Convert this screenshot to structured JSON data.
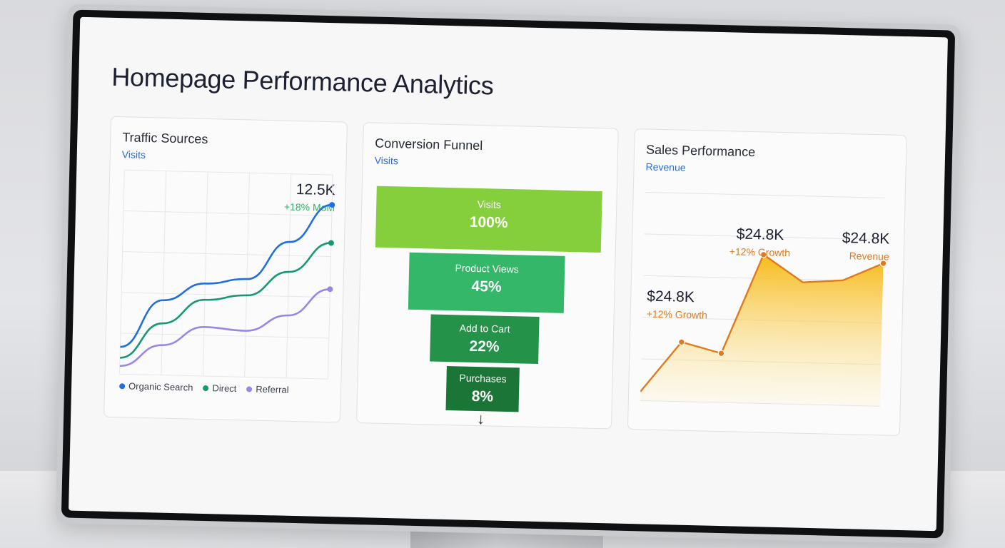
{
  "page_title": "Homepage Performance Analytics",
  "colors": {
    "organic": "#1f6fe0",
    "direct": "#159873",
    "referral": "#9b86e6",
    "funnel": [
      "#86cf3c",
      "#35b76a",
      "#25924a",
      "#1b7536"
    ],
    "sales": "#f2b81c",
    "accent": "#e07a1e"
  },
  "traffic": {
    "title": "Traffic Sources",
    "subtitle": "Visits",
    "value": "12.5K",
    "change": "+18% MoM",
    "legend": [
      "Organic Search",
      "Direct",
      "Referral"
    ]
  },
  "funnel": {
    "title": "Conversion Funnel",
    "subtitle": "Visits",
    "steps": [
      {
        "label": "Visits",
        "value": "100%"
      },
      {
        "label": "Product Views",
        "value": "45%"
      },
      {
        "label": "Add to Cart",
        "value": "22%"
      },
      {
        "label": "Purchases",
        "value": "8%"
      }
    ],
    "arrow": "↓"
  },
  "sales": {
    "title": "Sales Performance",
    "subtitle": "Revenue",
    "callout_left": {
      "value": "$24.8K",
      "change": "+12% Growth"
    },
    "callout_mid": {
      "value": "$24.8K",
      "change": "+12% Growth"
    },
    "callout_right": {
      "value": "$24.8K",
      "label": "Revenue"
    }
  },
  "chart_data": [
    {
      "type": "line",
      "title": "Traffic Sources",
      "x": [
        0,
        1,
        2,
        3,
        4,
        5
      ],
      "series": [
        {
          "name": "Organic Search",
          "values": [
            20,
            55,
            68,
            72,
            100,
            128
          ]
        },
        {
          "name": "Direct",
          "values": [
            12,
            38,
            56,
            60,
            78,
            100
          ]
        },
        {
          "name": "Referral",
          "values": [
            6,
            22,
            36,
            34,
            46,
            66
          ]
        }
      ],
      "ylim": [
        0,
        150
      ],
      "grid": true,
      "legend": "bottom"
    },
    {
      "type": "area",
      "title": "Sales Performance",
      "x": [
        0,
        1,
        2,
        3,
        4,
        5,
        6
      ],
      "series": [
        {
          "name": "Revenue",
          "values": [
            6,
            40,
            33,
            100,
            82,
            84,
            96
          ]
        }
      ],
      "ylim": [
        0,
        140
      ],
      "grid": true
    }
  ]
}
